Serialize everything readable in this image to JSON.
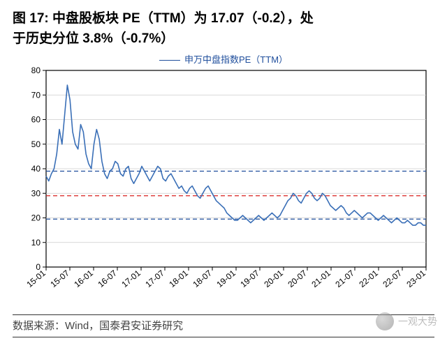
{
  "title_line1": "图 17:    中盘股板块 PE（TTM）为 17.07（-0.2），处",
  "title_line2": "于历史分位 3.8%（-0.7%）",
  "source_label": "数据来源：Wind，国泰君安证券研究",
  "watermark_text": "一观大势",
  "chart": {
    "type": "line",
    "legend_label": "申万中盘指数PE（TTM）",
    "plot_background": "#ffffff",
    "axis_color": "#000000",
    "grid_color": "#cccccc",
    "series_color": "#3a6fb7",
    "series_width": 1.6,
    "ylim": [
      0,
      80
    ],
    "ytick_step": 10,
    "x_labels": [
      "15-01",
      "15-07",
      "16-01",
      "16-07",
      "17-01",
      "17-07",
      "18-01",
      "18-07",
      "19-01",
      "19-07",
      "20-01",
      "20-07",
      "21-01",
      "21-07",
      "22-01",
      "22-07",
      "23-01"
    ],
    "x_tick_rotation": -40,
    "ref_lines": [
      {
        "y": 39,
        "color": "#1f4e9c",
        "dash": "6,4",
        "width": 1.3
      },
      {
        "y": 29,
        "color": "#d9201f",
        "dash": "6,4",
        "width": 1.3
      },
      {
        "y": 19.5,
        "color": "#1f4e9c",
        "dash": "6,4",
        "width": 1.3
      }
    ],
    "series": [
      37,
      35,
      38,
      40,
      46,
      56,
      50,
      62,
      74,
      68,
      55,
      50,
      48,
      58,
      55,
      46,
      42,
      40,
      50,
      56,
      52,
      43,
      38,
      36,
      39,
      40,
      43,
      42,
      38,
      37,
      40,
      41,
      36,
      34,
      36,
      38,
      41,
      39,
      37,
      35,
      37,
      39,
      41,
      40,
      36,
      35,
      37,
      38,
      36,
      34,
      32,
      33,
      31,
      30,
      32,
      33,
      31,
      29,
      28,
      30,
      32,
      33,
      31,
      29,
      27,
      26,
      25,
      24,
      22,
      21,
      20,
      19,
      19,
      20,
      21,
      20,
      19,
      18,
      19,
      20,
      21,
      20,
      19,
      20,
      21,
      22,
      21,
      20,
      21,
      23,
      25,
      27,
      28,
      30,
      29,
      27,
      26,
      28,
      30,
      31,
      30,
      28,
      27,
      28,
      30,
      29,
      27,
      25,
      24,
      23,
      24,
      25,
      24,
      22,
      21,
      22,
      23,
      22,
      21,
      20,
      21,
      22,
      22,
      21,
      20,
      19,
      20,
      21,
      20,
      19,
      18,
      19,
      20,
      19,
      18,
      18,
      19,
      18,
      17,
      17,
      18,
      18,
      17,
      17
    ]
  }
}
